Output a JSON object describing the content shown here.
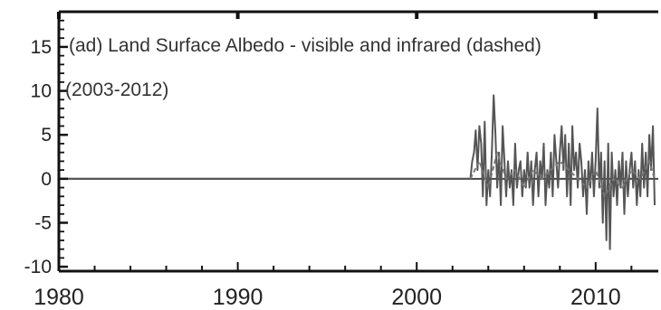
{
  "chart_data": {
    "type": "line",
    "title": "(ad) Land Surface Albedo - visible and infrared (dashed)",
    "subtitle": "(2003-2012)",
    "xlabel": "",
    "ylabel": "",
    "xlim": [
      1980,
      2013.5
    ],
    "ylim": [
      -10.5,
      19
    ],
    "x_ticks": [
      1980,
      1990,
      2000,
      2010
    ],
    "y_ticks": [
      15,
      10,
      5,
      0,
      -5,
      -10
    ],
    "grid": false,
    "legend": "none",
    "series": [
      {
        "style": "solid",
        "color": "#555555",
        "x": [
          1980,
          2003.0,
          2003.1,
          2003.2,
          2003.3,
          2003.4,
          2003.5,
          2003.6,
          2003.7,
          2003.8,
          2003.9,
          2004.0,
          2004.1,
          2004.2,
          2004.3,
          2004.4,
          2004.5,
          2004.6,
          2004.7,
          2004.8,
          2004.9,
          2005.0,
          2005.1,
          2005.2,
          2005.3,
          2005.4,
          2005.5,
          2005.6,
          2005.7,
          2005.8,
          2005.9,
          2006.0,
          2006.1,
          2006.2,
          2006.3,
          2006.4,
          2006.5,
          2006.6,
          2006.7,
          2006.8,
          2006.9,
          2007.0,
          2007.1,
          2007.2,
          2007.3,
          2007.4,
          2007.5,
          2007.6,
          2007.7,
          2007.8,
          2007.9,
          2008.0,
          2008.1,
          2008.2,
          2008.3,
          2008.4,
          2008.5,
          2008.6,
          2008.7,
          2008.8,
          2008.9,
          2009.0,
          2009.1,
          2009.2,
          2009.3,
          2009.4,
          2009.5,
          2009.6,
          2009.7,
          2009.8,
          2009.9,
          2010.0,
          2010.1,
          2010.2,
          2010.3,
          2010.4,
          2010.5,
          2010.6,
          2010.7,
          2010.8,
          2010.9,
          2011.0,
          2011.1,
          2011.2,
          2011.3,
          2011.4,
          2011.5,
          2011.6,
          2011.7,
          2011.8,
          2011.9,
          2012.0,
          2012.1,
          2012.2,
          2012.3,
          2012.4,
          2012.5,
          2012.6,
          2012.7,
          2012.8,
          2012.9,
          2013.0,
          2013.1,
          2013.2,
          2013.3
        ],
        "y": [
          0,
          0,
          2,
          3,
          5.5,
          1,
          6,
          4,
          -2,
          6.5,
          -3,
          1,
          -2,
          3,
          9.5,
          5,
          -1,
          3,
          -3,
          6,
          2,
          -2,
          2,
          -1,
          1,
          -3,
          4,
          -1,
          1,
          2,
          -2,
          1,
          -1,
          3,
          -1,
          2,
          -3,
          1,
          3,
          -2,
          2,
          0,
          4,
          -3,
          1,
          -1,
          3,
          -2,
          5,
          2,
          -1,
          3,
          6,
          1,
          5,
          -2,
          4,
          -3,
          6,
          1,
          3,
          -1,
          4,
          2,
          -2,
          1,
          -4,
          2,
          -1,
          3,
          -2,
          2,
          8,
          -1,
          3,
          -5,
          2,
          -7,
          4,
          -8,
          3,
          -2,
          1,
          -3,
          2,
          -1,
          3,
          -4,
          2,
          -2,
          1,
          3,
          -1,
          2,
          -3,
          1,
          -2,
          4,
          -1,
          3,
          -2,
          5,
          1,
          6,
          -3
        ]
      },
      {
        "style": "dashed",
        "color": "#777777",
        "x": [
          2003.0,
          2003.5,
          2004.0,
          2004.5,
          2005.0,
          2005.5,
          2006.0,
          2006.5,
          2007.0,
          2007.5,
          2008.0,
          2008.5,
          2009.0,
          2009.5,
          2010.0,
          2010.5,
          2011.0,
          2011.5,
          2012.0,
          2012.5,
          2013.0,
          2013.3
        ],
        "y": [
          0,
          2,
          -1,
          3,
          0,
          1,
          -1,
          1,
          0,
          1,
          2,
          1,
          0,
          -1,
          1,
          -2,
          0,
          -1,
          1,
          0,
          2,
          0
        ]
      }
    ]
  }
}
